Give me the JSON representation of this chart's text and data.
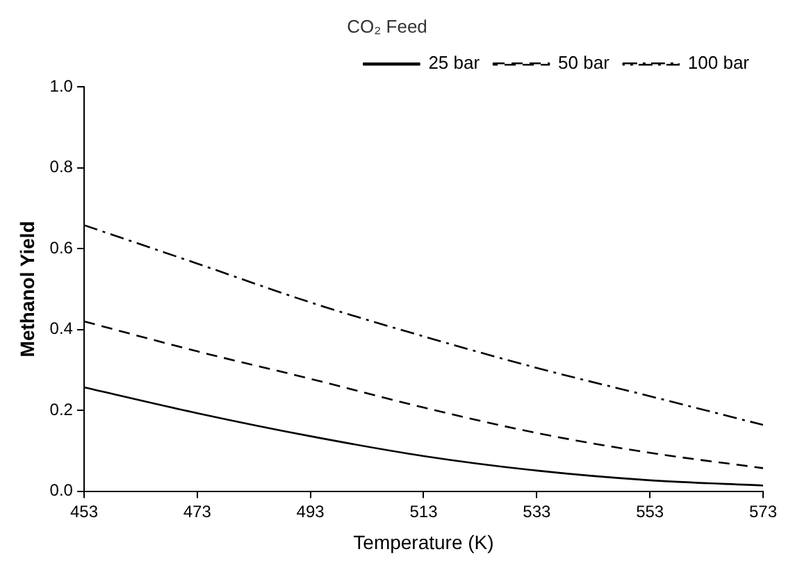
{
  "chart_data": {
    "type": "line",
    "title": "CO₂ Feed",
    "xlabel": "Temperature (K)",
    "ylabel": "Methanol Yield",
    "x": [
      453,
      473,
      493,
      513,
      533,
      553,
      573
    ],
    "series": [
      {
        "name": "25 bar",
        "color": "#000000",
        "line_style": "solid",
        "values": [
          0.257,
          0.193,
          0.136,
          0.087,
          0.051,
          0.027,
          0.014
        ]
      },
      {
        "name": "50 bar",
        "color": "#000000",
        "line_style": "dashed",
        "values": [
          0.42,
          0.346,
          0.278,
          0.207,
          0.144,
          0.095,
          0.057
        ]
      },
      {
        "name": "100 bar",
        "color": "#000000",
        "line_style": "dashdot",
        "values": [
          0.658,
          0.563,
          0.467,
          0.383,
          0.305,
          0.235,
          0.164
        ]
      }
    ],
    "xlim": [
      453,
      573
    ],
    "xticks": [
      453,
      473,
      493,
      513,
      533,
      553,
      573
    ],
    "ylim": [
      0,
      1
    ],
    "yticks": [
      {
        "value": 0,
        "label": "0.0"
      },
      {
        "value": 0.2,
        "label": "0.2"
      },
      {
        "value": 0.4,
        "label": "0.4"
      },
      {
        "value": 0.6,
        "label": "0.6"
      },
      {
        "value": 0.8,
        "label": "0.8"
      },
      {
        "value": 1,
        "label": "1.0"
      }
    ],
    "grid": false,
    "legend": "top right",
    "marker": "none"
  }
}
